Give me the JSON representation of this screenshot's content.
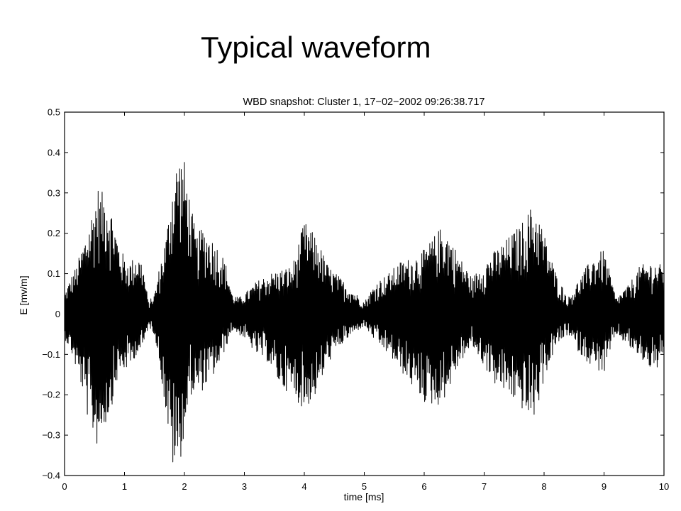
{
  "slide": {
    "title": "Typical waveform"
  },
  "chart_data": {
    "type": "line",
    "title": "WBD snapshot: Cluster 1, 17−02−2002 09:26:38.717",
    "xlabel": "time [ms]",
    "ylabel": "E [mv/m]",
    "xlim": [
      0,
      10
    ],
    "ylim": [
      -0.4,
      0.5
    ],
    "xticks": [
      0,
      1,
      2,
      3,
      4,
      5,
      6,
      7,
      8,
      9,
      10
    ],
    "xtick_labels": [
      "0",
      "1",
      "2",
      "3",
      "4",
      "5",
      "6",
      "7",
      "8",
      "9",
      "10"
    ],
    "yticks": [
      -0.4,
      -0.3,
      -0.2,
      -0.1,
      0,
      0.1,
      0.2,
      0.3,
      0.4,
      0.5
    ],
    "ytick_labels": [
      "−0.4",
      "−0.3",
      "−0.2",
      "−0.1",
      "0",
      "0.1",
      "0.2",
      "0.3",
      "0.4",
      "0.5"
    ],
    "grid": false,
    "line_color": "#000000",
    "series": [
      {
        "x": [
          0,
          0.1,
          0.2,
          0.3,
          0.4,
          0.5,
          0.55,
          0.6,
          0.7,
          0.8,
          0.9,
          1.0,
          1.1,
          1.2,
          1.3,
          1.4,
          1.5,
          1.6,
          1.7,
          1.8,
          1.9,
          2.0,
          2.1,
          2.2,
          2.3,
          2.4,
          2.5,
          2.6,
          2.7,
          2.8,
          2.9,
          3.0,
          3.2,
          3.4,
          3.6,
          3.8,
          4.0,
          4.2,
          4.4,
          4.6,
          4.8,
          5.0,
          5.2,
          5.4,
          5.6,
          5.8,
          6.0,
          6.2,
          6.3,
          6.4,
          6.6,
          6.8,
          7.0,
          7.2,
          7.4,
          7.6,
          7.8,
          7.9,
          8.0,
          8.2,
          8.4,
          8.6,
          8.8,
          9.0,
          9.2,
          9.4,
          9.6,
          9.8,
          10.0
        ],
        "upper": [
          0.05,
          0.09,
          0.12,
          0.17,
          0.22,
          0.28,
          0.32,
          0.3,
          0.31,
          0.25,
          0.18,
          0.14,
          0.13,
          0.15,
          0.13,
          0.03,
          0.05,
          0.13,
          0.2,
          0.33,
          0.4,
          0.38,
          0.28,
          0.19,
          0.22,
          0.2,
          0.18,
          0.16,
          0.12,
          0.05,
          0.04,
          0.05,
          0.08,
          0.1,
          0.11,
          0.12,
          0.23,
          0.19,
          0.12,
          0.09,
          0.06,
          0.03,
          0.08,
          0.1,
          0.13,
          0.14,
          0.16,
          0.2,
          0.22,
          0.2,
          0.14,
          0.09,
          0.13,
          0.16,
          0.19,
          0.22,
          0.27,
          0.25,
          0.2,
          0.1,
          0.04,
          0.09,
          0.14,
          0.16,
          0.04,
          0.07,
          0.12,
          0.13,
          0.12
        ],
        "lower": [
          -0.06,
          -0.09,
          -0.14,
          -0.19,
          -0.27,
          -0.31,
          -0.33,
          -0.3,
          -0.27,
          -0.22,
          -0.15,
          -0.14,
          -0.13,
          -0.1,
          -0.09,
          -0.03,
          -0.05,
          -0.14,
          -0.26,
          -0.38,
          -0.39,
          -0.3,
          -0.2,
          -0.2,
          -0.19,
          -0.17,
          -0.15,
          -0.12,
          -0.08,
          -0.04,
          -0.05,
          -0.06,
          -0.1,
          -0.12,
          -0.18,
          -0.2,
          -0.24,
          -0.2,
          -0.12,
          -0.08,
          -0.05,
          -0.03,
          -0.07,
          -0.1,
          -0.14,
          -0.18,
          -0.22,
          -0.23,
          -0.22,
          -0.19,
          -0.12,
          -0.08,
          -0.13,
          -0.18,
          -0.2,
          -0.23,
          -0.27,
          -0.23,
          -0.16,
          -0.08,
          -0.05,
          -0.1,
          -0.13,
          -0.15,
          -0.05,
          -0.08,
          -0.11,
          -0.14,
          -0.13
        ]
      }
    ]
  }
}
